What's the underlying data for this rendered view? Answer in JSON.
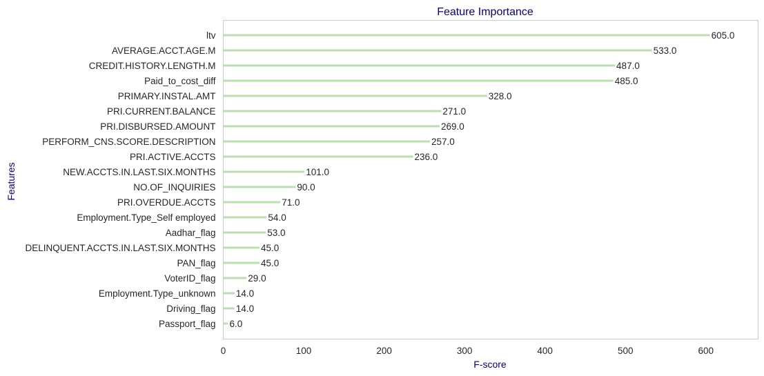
{
  "chart_data": {
    "type": "bar",
    "orientation": "horizontal",
    "title": "Feature Importance",
    "xlabel": "F-score",
    "ylabel": "Features",
    "xlim": [
      0,
      665
    ],
    "xticks": [
      0,
      100,
      200,
      300,
      400,
      500,
      600
    ],
    "grid": false,
    "categories": [
      "ltv",
      "AVERAGE.ACCT.AGE.M",
      "CREDIT.HISTORY.LENGTH.M",
      "Paid_to_cost_diff",
      "PRIMARY.INSTAL.AMT",
      "PRI.CURRENT.BALANCE",
      "PRI.DISBURSED.AMOUNT",
      "PERFORM_CNS.SCORE.DESCRIPTION",
      "PRI.ACTIVE.ACCTS",
      "NEW.ACCTS.IN.LAST.SIX.MONTHS",
      "NO.OF_INQUIRIES",
      "PRI.OVERDUE.ACCTS",
      "Employment.Type_Self employed",
      "Aadhar_flag",
      "DELINQUENT.ACCTS.IN.LAST.SIX.MONTHS",
      "PAN_flag",
      "VoterID_flag",
      "Employment.Type_unknown",
      "Driving_flag",
      "Passport_flag"
    ],
    "values": [
      605,
      533,
      487,
      485,
      328,
      271,
      269,
      257,
      236,
      101,
      90,
      71,
      54,
      53,
      45,
      45,
      29,
      14,
      14,
      6
    ],
    "value_labels": [
      "605.0",
      "533.0",
      "487.0",
      "485.0",
      "328.0",
      "271.0",
      "269.0",
      "257.0",
      "236.0",
      "101.0",
      "90.0",
      "71.0",
      "54.0",
      "53.0",
      "45.0",
      "45.0",
      "29.0",
      "14.0",
      "14.0",
      "6.0"
    ],
    "colors": {
      "bar": "#b8e0b0",
      "title": "#000080",
      "axis_title": "#000080",
      "text": "#262626",
      "frame": "#cccccc"
    }
  }
}
